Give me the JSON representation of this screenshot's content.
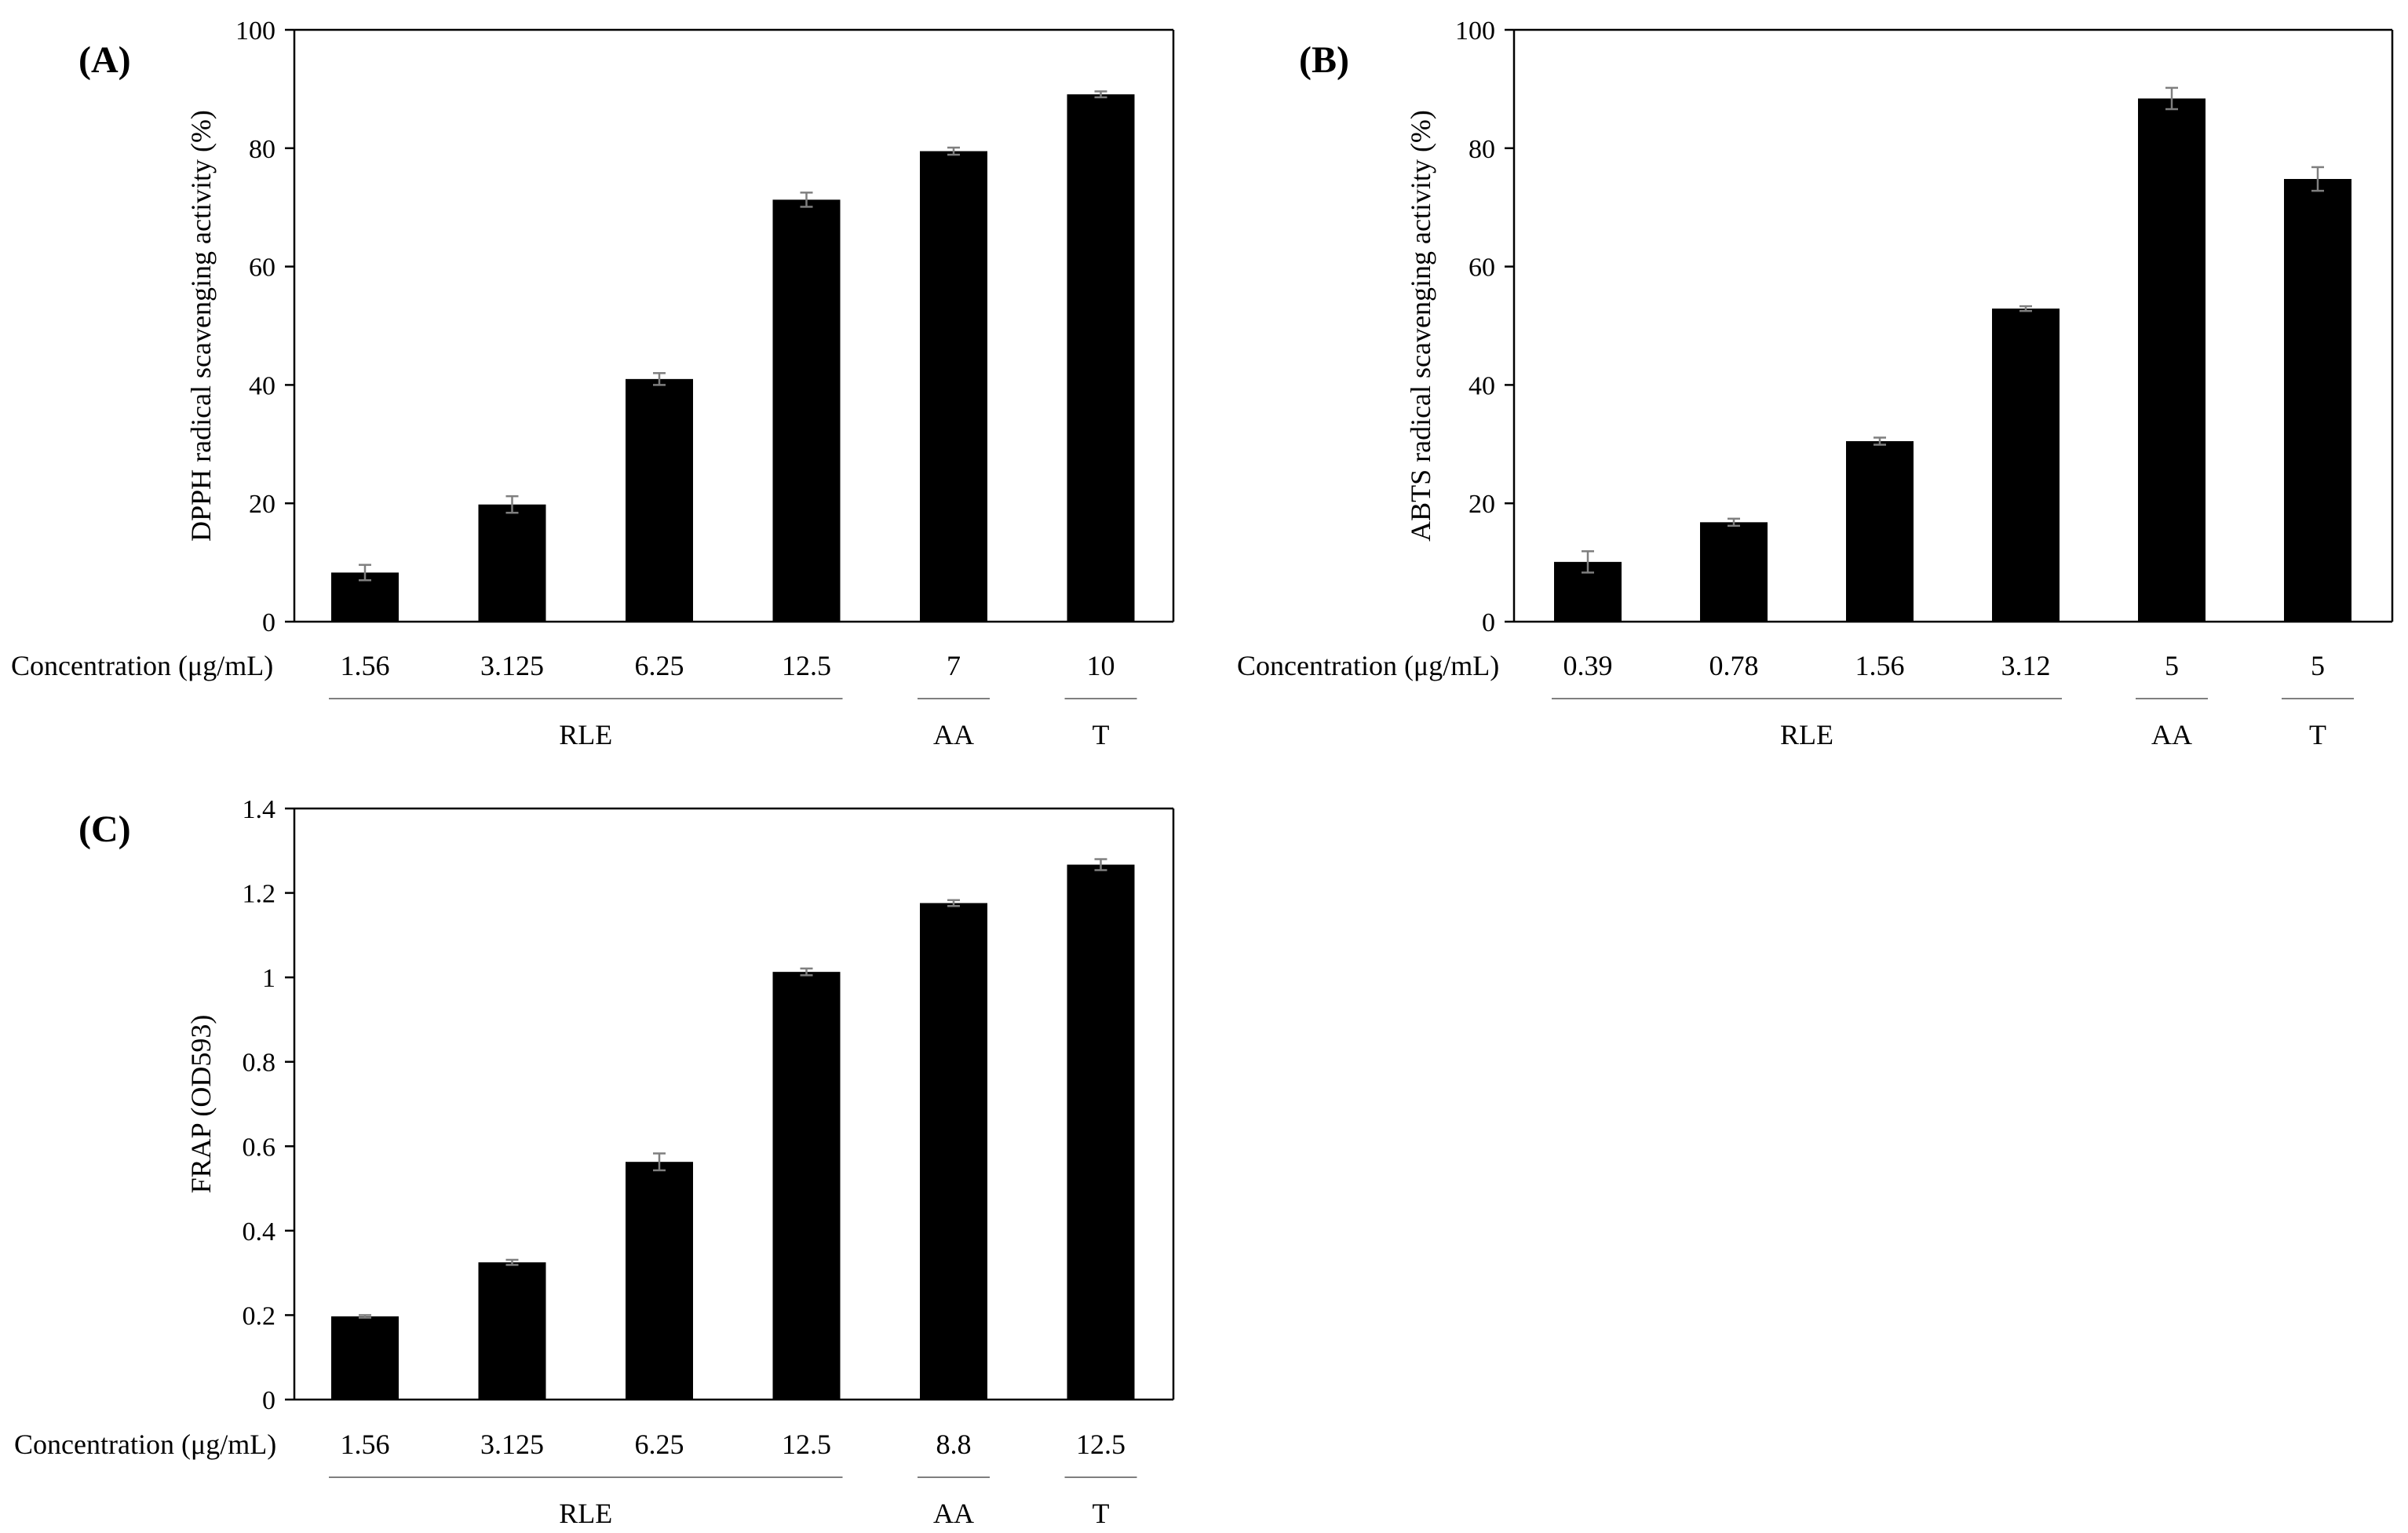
{
  "chart_data": [
    {
      "type": "bar",
      "panel_label": "(A)",
      "ylabel": "DPPH radical scavenging activity (%)",
      "xlabel": "Concentration (μg/mL)",
      "ylim": [
        0,
        100
      ],
      "yticks": [
        "0",
        "20",
        "40",
        "60",
        "80",
        "100"
      ],
      "categories": [
        "1.56",
        "3.125",
        "6.25",
        "12.5",
        "7",
        "10"
      ],
      "values": [
        8.3,
        19.8,
        41.0,
        71.3,
        79.5,
        89.1
      ],
      "errors": [
        1.3,
        1.4,
        1.0,
        1.2,
        0.6,
        0.5
      ],
      "groups": [
        {
          "label": "RLE",
          "span": [
            0,
            3
          ]
        },
        {
          "label": "AA",
          "span": [
            4,
            4
          ]
        },
        {
          "label": "T",
          "span": [
            5,
            5
          ]
        }
      ]
    },
    {
      "type": "bar",
      "panel_label": "(B)",
      "ylabel": "ABTS radical scavenging activity (%)",
      "xlabel": "Concentration (μg/mL)",
      "ylim": [
        0,
        100
      ],
      "yticks": [
        "0",
        "20",
        "40",
        "60",
        "80",
        "100"
      ],
      "categories": [
        "0.39",
        "0.78",
        "1.56",
        "3.12",
        "5",
        "5"
      ],
      "values": [
        10.1,
        16.8,
        30.5,
        52.9,
        88.4,
        74.8
      ],
      "errors": [
        1.8,
        0.6,
        0.6,
        0.4,
        1.8,
        2.0
      ],
      "groups": [
        {
          "label": "RLE",
          "span": [
            0,
            3
          ]
        },
        {
          "label": "AA",
          "span": [
            4,
            4
          ]
        },
        {
          "label": "T",
          "span": [
            5,
            5
          ]
        }
      ]
    },
    {
      "type": "bar",
      "panel_label": "(C)",
      "ylabel": "FRAP (OD593)",
      "xlabel": "Concentration (μg/mL)",
      "ylim": [
        0,
        1.4
      ],
      "yticks": [
        "0",
        "0.2",
        "0.4",
        "0.6",
        "0.8",
        "1",
        "1.2",
        "1.4"
      ],
      "categories": [
        "1.56",
        "3.125",
        "6.25",
        "12.5",
        "8.8",
        "12.5"
      ],
      "values": [
        0.197,
        0.325,
        0.563,
        1.013,
        1.176,
        1.267
      ],
      "errors": [
        0.003,
        0.006,
        0.02,
        0.008,
        0.007,
        0.013
      ],
      "groups": [
        {
          "label": "RLE",
          "span": [
            0,
            3
          ]
        },
        {
          "label": "AA",
          "span": [
            4,
            4
          ]
        },
        {
          "label": "T",
          "span": [
            5,
            5
          ]
        }
      ]
    }
  ]
}
